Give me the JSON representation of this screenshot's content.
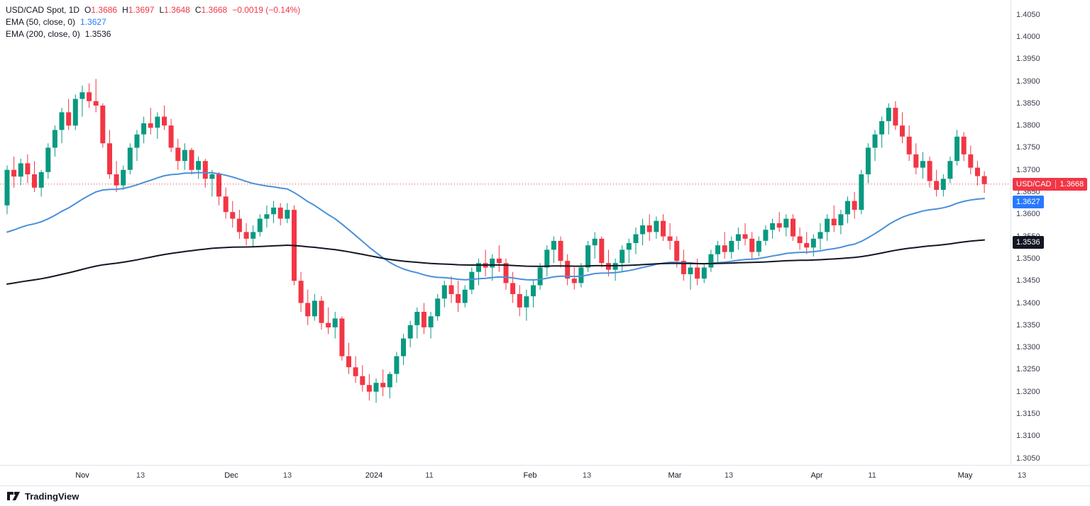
{
  "legend": {
    "symbol": {
      "title": "USD/CAD Spot, 1D",
      "o_label": "O",
      "o_value": "1.3686",
      "h_label": "H",
      "h_value": "1.3697",
      "l_label": "L",
      "l_value": "1.3648",
      "c_label": "C",
      "c_value": "1.3668",
      "change": "−0.0019 (−0.14%)"
    },
    "ema50": {
      "label": "EMA (50, close, 0)",
      "value": "1.3627"
    },
    "ema200": {
      "label": "EMA (200, close, 0)",
      "value": "1.3536"
    }
  },
  "price_axis": {
    "badges": [
      {
        "name": "last-price",
        "label": "USD/CAD",
        "value": "1.3668",
        "price": 1.3668,
        "color": "#f23645"
      },
      {
        "name": "ema50",
        "value": "1.3627",
        "price": 1.3627,
        "color": "#2979ff"
      },
      {
        "name": "ema200",
        "value": "1.3536",
        "price": 1.3536,
        "color": "#131722"
      }
    ]
  },
  "footer": {
    "brand": "TradingView"
  },
  "chart_data": {
    "type": "candlestick",
    "symbol": "USD/CAD Spot",
    "interval": "1D",
    "up_color": "#089981",
    "down_color": "#f23645",
    "last": {
      "open": 1.3686,
      "high": 1.3697,
      "low": 1.3648,
      "close": 1.3668,
      "change": -0.0019,
      "change_pct": -0.14
    },
    "last_price_line": {
      "price": 1.3668,
      "color": "#f23645",
      "style": "dotted"
    },
    "y_axis": {
      "min": 1.3035,
      "max": 1.4083,
      "tick_step": 0.005,
      "ticks": [
        "1.4050",
        "1.4000",
        "1.3950",
        "1.3900",
        "1.3850",
        "1.3800",
        "1.3750",
        "1.3700",
        "1.3650",
        "1.3600",
        "1.3550",
        "1.3500",
        "1.3450",
        "1.3400",
        "1.3350",
        "1.3300",
        "1.3250",
        "1.3200",
        "1.3150",
        "1.3100",
        "1.3050"
      ]
    },
    "x_ticks": [
      {
        "text": "Nov",
        "index": 11,
        "major": true
      },
      {
        "text": "13",
        "index": 19.5,
        "major": false
      },
      {
        "text": "Dec",
        "index": 32.8,
        "major": true
      },
      {
        "text": "13",
        "index": 41,
        "major": false
      },
      {
        "text": "2024",
        "index": 53.7,
        "major": true
      },
      {
        "text": "11",
        "index": 61.8,
        "major": false
      },
      {
        "text": "Feb",
        "index": 76.5,
        "major": true
      },
      {
        "text": "13",
        "index": 84.8,
        "major": false
      },
      {
        "text": "Mar",
        "index": 97.7,
        "major": true
      },
      {
        "text": "13",
        "index": 105.6,
        "major": false
      },
      {
        "text": "Apr",
        "index": 118.5,
        "major": true
      },
      {
        "text": "11",
        "index": 126.6,
        "major": false
      },
      {
        "text": "May",
        "index": 140.2,
        "major": true
      },
      {
        "text": "13",
        "index": 148.5,
        "major": false
      }
    ],
    "indicators": [
      {
        "name": "EMA 50",
        "type": "ema",
        "period": 50,
        "seed": 1.3554,
        "color": "#4a90d9",
        "width": 2,
        "last": 1.3627
      },
      {
        "name": "EMA 200",
        "type": "ema",
        "period": 200,
        "seed": 1.344,
        "color": "#131722",
        "width": 2,
        "last": 1.3536
      }
    ],
    "candles": [
      [
        1.362,
        1.371,
        1.36,
        1.37
      ],
      [
        1.37,
        1.373,
        1.366,
        1.3685
      ],
      [
        1.3685,
        1.3725,
        1.3665,
        1.3715
      ],
      [
        1.3715,
        1.3735,
        1.367,
        1.369
      ],
      [
        1.369,
        1.372,
        1.365,
        1.366
      ],
      [
        1.366,
        1.37,
        1.364,
        1.3695
      ],
      [
        1.3695,
        1.376,
        1.368,
        1.375
      ],
      [
        1.375,
        1.38,
        1.373,
        1.379
      ],
      [
        1.379,
        1.384,
        1.376,
        1.383
      ],
      [
        1.383,
        1.386,
        1.379,
        1.38
      ],
      [
        1.38,
        1.387,
        1.379,
        1.386
      ],
      [
        1.386,
        1.389,
        1.382,
        1.3875
      ],
      [
        1.3875,
        1.3895,
        1.384,
        1.3855
      ],
      [
        1.3855,
        1.3905,
        1.383,
        1.3845
      ],
      [
        1.3845,
        1.385,
        1.375,
        1.376
      ],
      [
        1.376,
        1.379,
        1.368,
        1.369
      ],
      [
        1.369,
        1.372,
        1.365,
        1.3665
      ],
      [
        1.3665,
        1.371,
        1.3655,
        1.37
      ],
      [
        1.37,
        1.376,
        1.369,
        1.375
      ],
      [
        1.375,
        1.379,
        1.372,
        1.378
      ],
      [
        1.378,
        1.382,
        1.376,
        1.3805
      ],
      [
        1.3805,
        1.384,
        1.378,
        1.3795
      ],
      [
        1.3795,
        1.383,
        1.377,
        1.382
      ],
      [
        1.382,
        1.3845,
        1.379,
        1.38
      ],
      [
        1.38,
        1.3815,
        1.374,
        1.375
      ],
      [
        1.375,
        1.377,
        1.37,
        1.372
      ],
      [
        1.372,
        1.376,
        1.37,
        1.3745
      ],
      [
        1.3745,
        1.375,
        1.369,
        1.37
      ],
      [
        1.37,
        1.373,
        1.368,
        1.372
      ],
      [
        1.372,
        1.3725,
        1.366,
        1.368
      ],
      [
        1.368,
        1.37,
        1.364,
        1.369
      ],
      [
        1.369,
        1.3695,
        1.362,
        1.364
      ],
      [
        1.364,
        1.366,
        1.359,
        1.3605
      ],
      [
        1.3605,
        1.363,
        1.357,
        1.359
      ],
      [
        1.359,
        1.361,
        1.3545,
        1.356
      ],
      [
        1.356,
        1.358,
        1.353,
        1.3545
      ],
      [
        1.3545,
        1.3575,
        1.3525,
        1.356
      ],
      [
        1.356,
        1.36,
        1.355,
        1.359
      ],
      [
        1.359,
        1.362,
        1.357,
        1.36
      ],
      [
        1.36,
        1.363,
        1.358,
        1.3615
      ],
      [
        1.3615,
        1.3625,
        1.3575,
        1.359
      ],
      [
        1.359,
        1.3625,
        1.358,
        1.361
      ],
      [
        1.361,
        1.362,
        1.344,
        1.345
      ],
      [
        1.345,
        1.347,
        1.338,
        1.34
      ],
      [
        1.34,
        1.343,
        1.335,
        1.337
      ],
      [
        1.337,
        1.342,
        1.336,
        1.3405
      ],
      [
        1.3405,
        1.3415,
        1.334,
        1.3355
      ],
      [
        1.3355,
        1.339,
        1.333,
        1.3345
      ],
      [
        1.3345,
        1.338,
        1.332,
        1.3365
      ],
      [
        1.3365,
        1.337,
        1.327,
        1.328
      ],
      [
        1.328,
        1.331,
        1.324,
        1.3255
      ],
      [
        1.3255,
        1.328,
        1.322,
        1.3235
      ],
      [
        1.3235,
        1.326,
        1.32,
        1.3215
      ],
      [
        1.3215,
        1.324,
        1.318,
        1.32
      ],
      [
        1.32,
        1.323,
        1.3175,
        1.322
      ],
      [
        1.322,
        1.325,
        1.319,
        1.321
      ],
      [
        1.321,
        1.3245,
        1.3185,
        1.324
      ],
      [
        1.324,
        1.329,
        1.322,
        1.328
      ],
      [
        1.328,
        1.333,
        1.326,
        1.332
      ],
      [
        1.332,
        1.336,
        1.33,
        1.335
      ],
      [
        1.335,
        1.339,
        1.332,
        1.338
      ],
      [
        1.338,
        1.34,
        1.333,
        1.3345
      ],
      [
        1.3345,
        1.338,
        1.332,
        1.337
      ],
      [
        1.337,
        1.342,
        1.336,
        1.341
      ],
      [
        1.341,
        1.345,
        1.339,
        1.344
      ],
      [
        1.344,
        1.346,
        1.34,
        1.342
      ],
      [
        1.342,
        1.345,
        1.338,
        1.34
      ],
      [
        1.34,
        1.344,
        1.339,
        1.343
      ],
      [
        1.343,
        1.348,
        1.342,
        1.347
      ],
      [
        1.347,
        1.35,
        1.344,
        1.349
      ],
      [
        1.349,
        1.352,
        1.346,
        1.348
      ],
      [
        1.348,
        1.351,
        1.345,
        1.35
      ],
      [
        1.35,
        1.353,
        1.347,
        1.349
      ],
      [
        1.349,
        1.35,
        1.343,
        1.3445
      ],
      [
        1.3445,
        1.347,
        1.34,
        1.342
      ],
      [
        1.342,
        1.344,
        1.337,
        1.339
      ],
      [
        1.339,
        1.343,
        1.336,
        1.3415
      ],
      [
        1.3415,
        1.345,
        1.339,
        1.344
      ],
      [
        1.344,
        1.349,
        1.343,
        1.348
      ],
      [
        1.348,
        1.353,
        1.346,
        1.352
      ],
      [
        1.352,
        1.355,
        1.349,
        1.354
      ],
      [
        1.354,
        1.355,
        1.348,
        1.3495
      ],
      [
        1.3495,
        1.351,
        1.344,
        1.3455
      ],
      [
        1.3455,
        1.348,
        1.343,
        1.3445
      ],
      [
        1.3445,
        1.349,
        1.3435,
        1.348
      ],
      [
        1.348,
        1.354,
        1.347,
        1.353
      ],
      [
        1.353,
        1.356,
        1.35,
        1.3545
      ],
      [
        1.3545,
        1.355,
        1.348,
        1.349
      ],
      [
        1.349,
        1.352,
        1.346,
        1.3475
      ],
      [
        1.3475,
        1.35,
        1.345,
        1.349
      ],
      [
        1.349,
        1.353,
        1.347,
        1.352
      ],
      [
        1.352,
        1.3545,
        1.349,
        1.3535
      ],
      [
        1.3535,
        1.357,
        1.351,
        1.3555
      ],
      [
        1.3555,
        1.359,
        1.353,
        1.3575
      ],
      [
        1.3575,
        1.36,
        1.354,
        1.356
      ],
      [
        1.356,
        1.3595,
        1.3545,
        1.3585
      ],
      [
        1.3585,
        1.36,
        1.354,
        1.355
      ],
      [
        1.355,
        1.358,
        1.352,
        1.354
      ],
      [
        1.354,
        1.355,
        1.348,
        1.3495
      ],
      [
        1.3495,
        1.352,
        1.345,
        1.3465
      ],
      [
        1.3465,
        1.349,
        1.343,
        1.348
      ],
      [
        1.348,
        1.35,
        1.344,
        1.3455
      ],
      [
        1.3455,
        1.349,
        1.3445,
        1.348
      ],
      [
        1.348,
        1.352,
        1.347,
        1.351
      ],
      [
        1.351,
        1.354,
        1.349,
        1.353
      ],
      [
        1.353,
        1.356,
        1.35,
        1.3515
      ],
      [
        1.3515,
        1.355,
        1.35,
        1.354
      ],
      [
        1.354,
        1.357,
        1.352,
        1.3555
      ],
      [
        1.3555,
        1.358,
        1.353,
        1.3545
      ],
      [
        1.3545,
        1.356,
        1.35,
        1.3515
      ],
      [
        1.3515,
        1.355,
        1.3505,
        1.354
      ],
      [
        1.354,
        1.3575,
        1.353,
        1.3565
      ],
      [
        1.3565,
        1.359,
        1.3545,
        1.358
      ],
      [
        1.358,
        1.3605,
        1.356,
        1.357
      ],
      [
        1.357,
        1.36,
        1.355,
        1.359
      ],
      [
        1.359,
        1.36,
        1.354,
        1.355
      ],
      [
        1.355,
        1.357,
        1.352,
        1.3535
      ],
      [
        1.3535,
        1.356,
        1.351,
        1.3525
      ],
      [
        1.3525,
        1.3555,
        1.3505,
        1.3545
      ],
      [
        1.3545,
        1.358,
        1.352,
        1.356
      ],
      [
        1.356,
        1.36,
        1.354,
        1.359
      ],
      [
        1.359,
        1.362,
        1.356,
        1.3575
      ],
      [
        1.3575,
        1.361,
        1.3555,
        1.36
      ],
      [
        1.36,
        1.364,
        1.358,
        1.363
      ],
      [
        1.363,
        1.365,
        1.359,
        1.361
      ],
      [
        1.361,
        1.37,
        1.36,
        1.369
      ],
      [
        1.369,
        1.376,
        1.367,
        1.375
      ],
      [
        1.375,
        1.379,
        1.372,
        1.378
      ],
      [
        1.378,
        1.382,
        1.375,
        1.381
      ],
      [
        1.381,
        1.385,
        1.378,
        1.384
      ],
      [
        1.384,
        1.3855,
        1.379,
        1.38
      ],
      [
        1.38,
        1.383,
        1.376,
        1.3775
      ],
      [
        1.3775,
        1.38,
        1.372,
        1.3735
      ],
      [
        1.3735,
        1.376,
        1.369,
        1.3705
      ],
      [
        1.3705,
        1.374,
        1.368,
        1.372
      ],
      [
        1.372,
        1.373,
        1.366,
        1.3675
      ],
      [
        1.3675,
        1.37,
        1.364,
        1.3655
      ],
      [
        1.3655,
        1.369,
        1.364,
        1.368
      ],
      [
        1.368,
        1.373,
        1.367,
        1.372
      ],
      [
        1.372,
        1.379,
        1.371,
        1.3775
      ],
      [
        1.3775,
        1.3785,
        1.372,
        1.3735
      ],
      [
        1.3735,
        1.3755,
        1.369,
        1.3705
      ],
      [
        1.3705,
        1.372,
        1.3665,
        1.3686
      ],
      [
        1.3686,
        1.3697,
        1.3648,
        1.3668
      ]
    ]
  }
}
